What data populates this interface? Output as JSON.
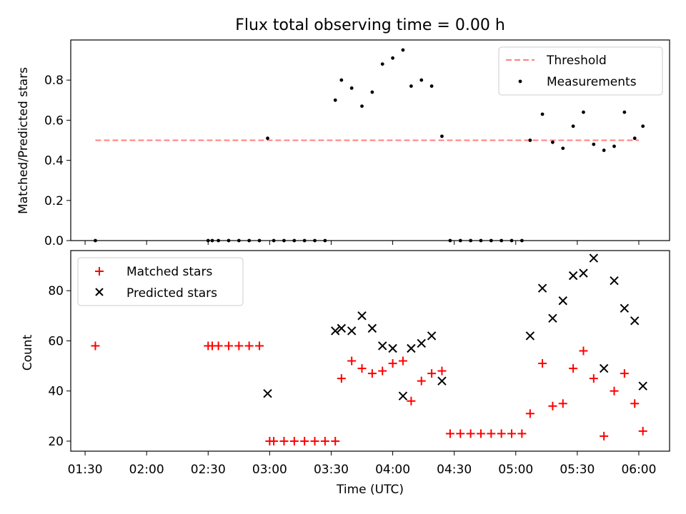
{
  "title": "Flux total observing time = 0.00 h",
  "colors": {
    "threshold": "#ff7f7f",
    "measurements": "#000000",
    "matched": "#ff0000",
    "predicted": "#000000"
  },
  "chart_data": [
    {
      "type": "scatter",
      "ylabel": "Matched/Predicted stars",
      "ylim": [
        0,
        1.0
      ],
      "yticks": [
        "0.0",
        "0.2",
        "0.4",
        "0.6",
        "0.8"
      ],
      "ytick_values": [
        0,
        0.2,
        0.4,
        0.6,
        0.8
      ],
      "legend": {
        "placement": "upper right",
        "entries": [
          "Threshold",
          "Measurements"
        ]
      },
      "threshold": {
        "name": "Threshold",
        "value": 0.5,
        "x_start": "01:35",
        "x_end": "06:00"
      },
      "series": [
        {
          "name": "Measurements",
          "x": [
            "01:35",
            "02:30",
            "02:32",
            "02:35",
            "02:40",
            "02:45",
            "02:50",
            "02:55",
            "02:59",
            "03:02",
            "03:07",
            "03:12",
            "03:17",
            "03:22",
            "03:27",
            "03:32",
            "03:35",
            "03:40",
            "03:45",
            "03:50",
            "03:55",
            "04:00",
            "04:05",
            "04:09",
            "04:14",
            "04:19",
            "04:24",
            "04:28",
            "04:33",
            "04:38",
            "04:43",
            "04:48",
            "04:53",
            "04:58",
            "05:03",
            "05:07",
            "05:13",
            "05:18",
            "05:23",
            "05:28",
            "05:33",
            "05:38",
            "05:43",
            "05:48",
            "05:53",
            "05:58",
            "06:02"
          ],
          "y": [
            0.0,
            0.0,
            0.0,
            0.0,
            0.0,
            0.0,
            0.0,
            0.0,
            0.51,
            0.0,
            0.0,
            0.0,
            0.0,
            0.0,
            0.0,
            0.7,
            0.8,
            0.76,
            0.67,
            0.74,
            0.88,
            0.91,
            0.95,
            0.77,
            0.8,
            0.77,
            0.52,
            0.0,
            0.0,
            0.0,
            0.0,
            0.0,
            0.0,
            0.0,
            0.0,
            0.5,
            0.63,
            0.49,
            0.46,
            0.57,
            0.64,
            0.48,
            0.45,
            0.47,
            0.64,
            0.51,
            0.57
          ]
        }
      ]
    },
    {
      "type": "scatter",
      "xlabel": "Time (UTC)",
      "ylabel": "Count",
      "ylim": [
        16,
        96
      ],
      "yticks": [
        "20",
        "40",
        "60",
        "80"
      ],
      "ytick_values": [
        20,
        40,
        60,
        80
      ],
      "xlim": [
        "01:23",
        "06:15"
      ],
      "xticks": [
        "01:30",
        "02:00",
        "02:30",
        "03:00",
        "03:30",
        "04:00",
        "04:30",
        "05:00",
        "05:30",
        "06:00"
      ],
      "legend": {
        "placement": "upper left",
        "entries": [
          "Matched stars",
          "Predicted stars"
        ]
      },
      "series": [
        {
          "name": "Matched stars",
          "x": [
            "01:35",
            "02:30",
            "02:32",
            "02:35",
            "02:40",
            "02:45",
            "02:50",
            "02:55",
            "03:00",
            "03:02",
            "03:07",
            "03:12",
            "03:17",
            "03:22",
            "03:27",
            "03:32",
            "03:35",
            "03:40",
            "03:45",
            "03:50",
            "03:55",
            "04:00",
            "04:05",
            "04:09",
            "04:14",
            "04:19",
            "04:24",
            "04:28",
            "04:33",
            "04:38",
            "04:43",
            "04:48",
            "04:53",
            "04:58",
            "05:03",
            "05:07",
            "05:13",
            "05:18",
            "05:23",
            "05:28",
            "05:33",
            "05:38",
            "05:43",
            "05:48",
            "05:53",
            "05:58",
            "06:02"
          ],
          "y": [
            58,
            58,
            58,
            58,
            58,
            58,
            58,
            58,
            20,
            20,
            20,
            20,
            20,
            20,
            20,
            20,
            45,
            52,
            49,
            47,
            48,
            51,
            52,
            36,
            44,
            47,
            48,
            23,
            23,
            23,
            23,
            23,
            23,
            23,
            23,
            31,
            51,
            34,
            35,
            49,
            56,
            45,
            22,
            40,
            47,
            35,
            24
          ]
        },
        {
          "name": "Predicted stars",
          "x": [
            "02:59",
            "03:32",
            "03:35",
            "03:40",
            "03:45",
            "03:50",
            "03:55",
            "04:00",
            "04:05",
            "04:09",
            "04:14",
            "04:19",
            "04:24",
            "05:07",
            "05:13",
            "05:18",
            "05:23",
            "05:28",
            "05:33",
            "05:38",
            "05:43",
            "05:48",
            "05:53",
            "05:58",
            "06:02"
          ],
          "y": [
            39,
            64,
            65,
            64,
            70,
            65,
            58,
            57,
            38,
            57,
            59,
            62,
            44,
            62,
            81,
            69,
            76,
            86,
            87,
            93,
            49,
            84,
            73,
            68,
            42
          ]
        }
      ]
    }
  ]
}
